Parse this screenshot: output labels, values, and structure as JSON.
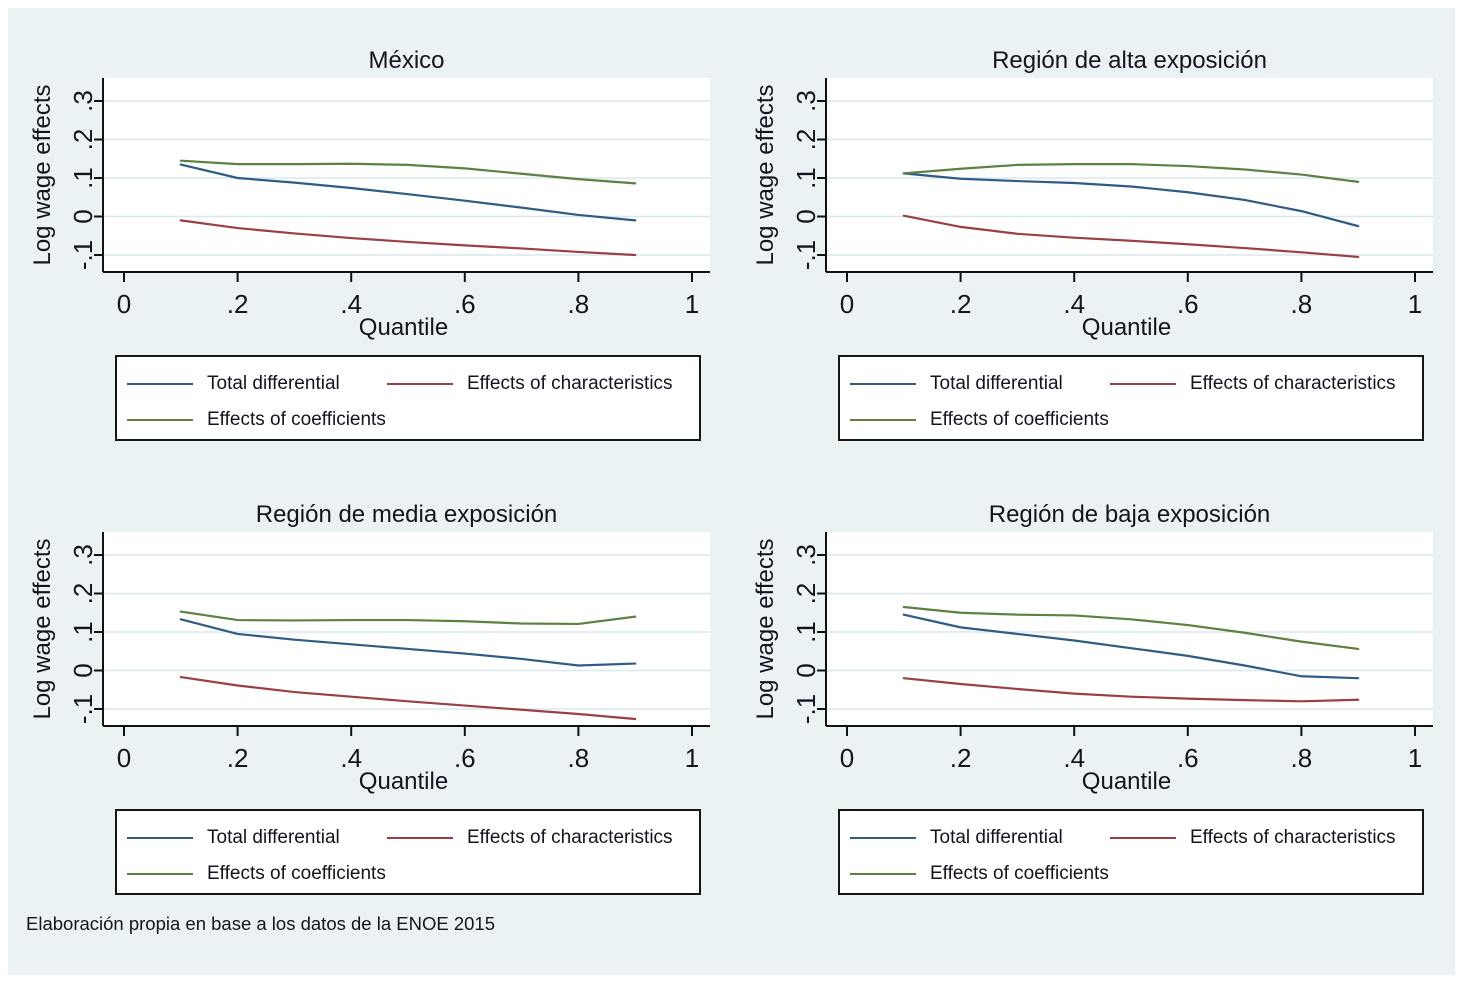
{
  "page": {
    "background_color": "#eaf2f3",
    "source_note": "Elaboración propia en base a los datos de la ENOE 2015"
  },
  "colors": {
    "navy": "#2e5c85",
    "maroon": "#9a3f43",
    "forest_green": "#5d8140",
    "grid": "#dce8ee",
    "axis": "#111111",
    "text": "#14141f",
    "plot_background": "#ffffff",
    "figure_background": "#eaf2f3"
  },
  "legend": {
    "entries": [
      {
        "label": "Total differential",
        "color": "#2e5c85"
      },
      {
        "label": "Effects of characteristics",
        "color": "#9a3f43"
      },
      {
        "label": "Effects of coefficients",
        "color": "#5d8140"
      }
    ]
  },
  "chart_data": [
    {
      "type": "line",
      "title": "México",
      "xlabel": "Quantile",
      "ylabel": "Log wage effects",
      "x": [
        0.1,
        0.2,
        0.3,
        0.4,
        0.5,
        0.6,
        0.7,
        0.8,
        0.9
      ],
      "xlim": [
        -0.037,
        1.032
      ],
      "ylim": [
        -0.144,
        0.36
      ],
      "grid": true,
      "legend_position": "below",
      "xticks": {
        "values": [
          0,
          0.2,
          0.4,
          0.6,
          0.8,
          1
        ],
        "labels": [
          "0",
          ".2",
          ".4",
          ".6",
          ".8",
          "1"
        ]
      },
      "yticks": {
        "values": [
          -0.1,
          0,
          0.1,
          0.2,
          0.3
        ],
        "labels": [
          "-.1",
          "0",
          ".1",
          ".2",
          ".3"
        ]
      },
      "series": [
        {
          "name": "Total differential",
          "color": "#2e5c85",
          "values": [
            0.135,
            0.1,
            0.088,
            0.074,
            0.058,
            0.041,
            0.023,
            0.004,
            -0.01
          ]
        },
        {
          "name": "Effects of characteristics",
          "color": "#9a3f43",
          "values": [
            -0.01,
            -0.03,
            -0.044,
            -0.056,
            -0.066,
            -0.075,
            -0.083,
            -0.092,
            -0.1
          ]
        },
        {
          "name": "Effects of coefficients",
          "color": "#5d8140",
          "values": [
            0.145,
            0.136,
            0.136,
            0.137,
            0.134,
            0.125,
            0.111,
            0.097,
            0.086
          ]
        }
      ]
    },
    {
      "type": "line",
      "title": "Región de alta exposición",
      "xlabel": "Quantile",
      "ylabel": "Log wage effects",
      "x": [
        0.1,
        0.2,
        0.3,
        0.4,
        0.5,
        0.6,
        0.7,
        0.8,
        0.9
      ],
      "xlim": [
        -0.037,
        1.032
      ],
      "ylim": [
        -0.144,
        0.36
      ],
      "grid": true,
      "legend_position": "below",
      "xticks": {
        "values": [
          0,
          0.2,
          0.4,
          0.6,
          0.8,
          1
        ],
        "labels": [
          "0",
          ".2",
          ".4",
          ".6",
          ".8",
          "1"
        ]
      },
      "yticks": {
        "values": [
          -0.1,
          0,
          0.1,
          0.2,
          0.3
        ],
        "labels": [
          "-.1",
          "0",
          ".1",
          ".2",
          ".3"
        ]
      },
      "series": [
        {
          "name": "Total differential",
          "color": "#2e5c85",
          "values": [
            0.112,
            0.098,
            0.092,
            0.087,
            0.078,
            0.063,
            0.043,
            0.014,
            -0.025
          ]
        },
        {
          "name": "Effects of characteristics",
          "color": "#9a3f43",
          "values": [
            0.002,
            -0.027,
            -0.045,
            -0.055,
            -0.063,
            -0.072,
            -0.082,
            -0.093,
            -0.105
          ]
        },
        {
          "name": "Effects of coefficients",
          "color": "#5d8140",
          "values": [
            0.112,
            0.124,
            0.134,
            0.136,
            0.136,
            0.131,
            0.122,
            0.109,
            0.09
          ]
        }
      ]
    },
    {
      "type": "line",
      "title": "Región de media exposición",
      "xlabel": "Quantile",
      "ylabel": "Log wage effects",
      "x": [
        0.1,
        0.2,
        0.3,
        0.4,
        0.5,
        0.6,
        0.7,
        0.8,
        0.9
      ],
      "xlim": [
        -0.037,
        1.032
      ],
      "ylim": [
        -0.144,
        0.36
      ],
      "grid": true,
      "legend_position": "below",
      "xticks": {
        "values": [
          0,
          0.2,
          0.4,
          0.6,
          0.8,
          1
        ],
        "labels": [
          "0",
          ".2",
          ".4",
          ".6",
          ".8",
          "1"
        ]
      },
      "yticks": {
        "values": [
          -0.1,
          0,
          0.1,
          0.2,
          0.3
        ],
        "labels": [
          "-.1",
          "0",
          ".1",
          ".2",
          ".3"
        ]
      },
      "series": [
        {
          "name": "Total differential",
          "color": "#2e5c85",
          "values": [
            0.133,
            0.095,
            0.08,
            0.068,
            0.056,
            0.044,
            0.03,
            0.013,
            0.018
          ]
        },
        {
          "name": "Effects of characteristics",
          "color": "#9a3f43",
          "values": [
            -0.017,
            -0.039,
            -0.056,
            -0.068,
            -0.08,
            -0.091,
            -0.102,
            -0.113,
            -0.126
          ]
        },
        {
          "name": "Effects of coefficients",
          "color": "#5d8140",
          "values": [
            0.153,
            0.131,
            0.13,
            0.131,
            0.131,
            0.128,
            0.122,
            0.121,
            0.14
          ]
        }
      ]
    },
    {
      "type": "line",
      "title": "Región de baja exposición",
      "xlabel": "Quantile",
      "ylabel": "Log wage effects",
      "x": [
        0.1,
        0.2,
        0.3,
        0.4,
        0.5,
        0.6,
        0.7,
        0.8,
        0.9
      ],
      "xlim": [
        -0.037,
        1.032
      ],
      "ylim": [
        -0.144,
        0.36
      ],
      "grid": true,
      "legend_position": "below",
      "xticks": {
        "values": [
          0,
          0.2,
          0.4,
          0.6,
          0.8,
          1
        ],
        "labels": [
          "0",
          ".2",
          ".4",
          ".6",
          ".8",
          "1"
        ]
      },
      "yticks": {
        "values": [
          -0.1,
          0,
          0.1,
          0.2,
          0.3
        ],
        "labels": [
          "-.1",
          "0",
          ".1",
          ".2",
          ".3"
        ]
      },
      "series": [
        {
          "name": "Total differential",
          "color": "#2e5c85",
          "values": [
            0.145,
            0.112,
            0.095,
            0.078,
            0.058,
            0.038,
            0.013,
            -0.015,
            -0.02
          ]
        },
        {
          "name": "Effects of characteristics",
          "color": "#9a3f43",
          "values": [
            -0.02,
            -0.035,
            -0.048,
            -0.06,
            -0.068,
            -0.073,
            -0.077,
            -0.08,
            -0.076
          ]
        },
        {
          "name": "Effects of coefficients",
          "color": "#5d8140",
          "values": [
            0.165,
            0.15,
            0.145,
            0.143,
            0.133,
            0.118,
            0.098,
            0.075,
            0.056
          ]
        }
      ]
    }
  ]
}
